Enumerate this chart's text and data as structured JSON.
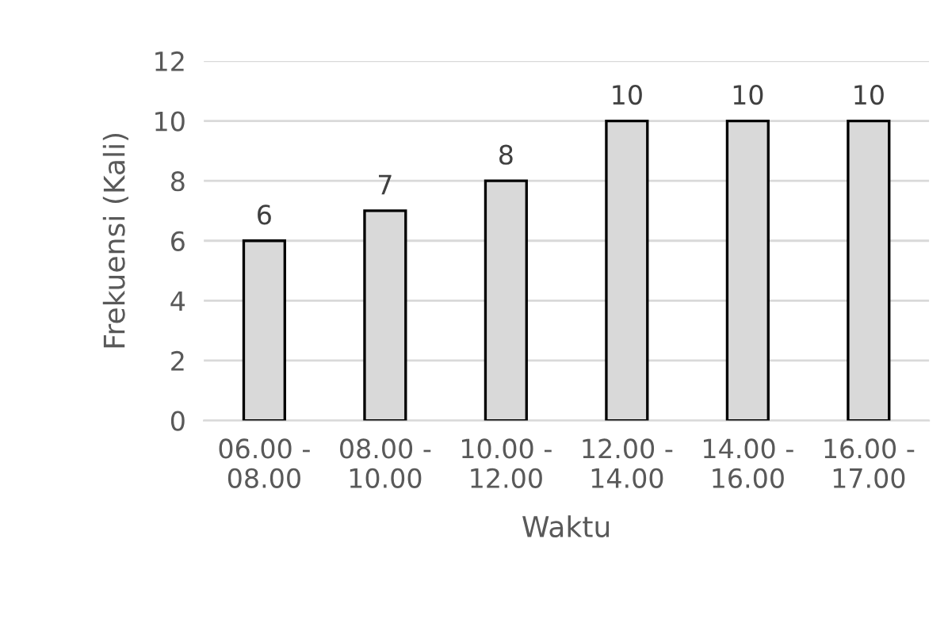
{
  "chart_data": {
    "type": "bar",
    "categories": [
      "06.00 -\n08.00",
      "08.00 -\n10.00",
      "10.00 -\n12.00",
      "12.00 -\n14.00",
      "14.00 -\n16.00",
      "16.00 -\n17.00"
    ],
    "values": [
      6,
      7,
      8,
      10,
      10,
      10
    ],
    "color": "#d9d9d9",
    "xlabel": "Waktu",
    "ylabel": "Frekuensi (Kali)",
    "ylim": [
      0,
      12
    ],
    "yticks": [
      0,
      2,
      4,
      6,
      8,
      10,
      12
    ],
    "grid": "y",
    "data_labels": true,
    "legend": false
  }
}
